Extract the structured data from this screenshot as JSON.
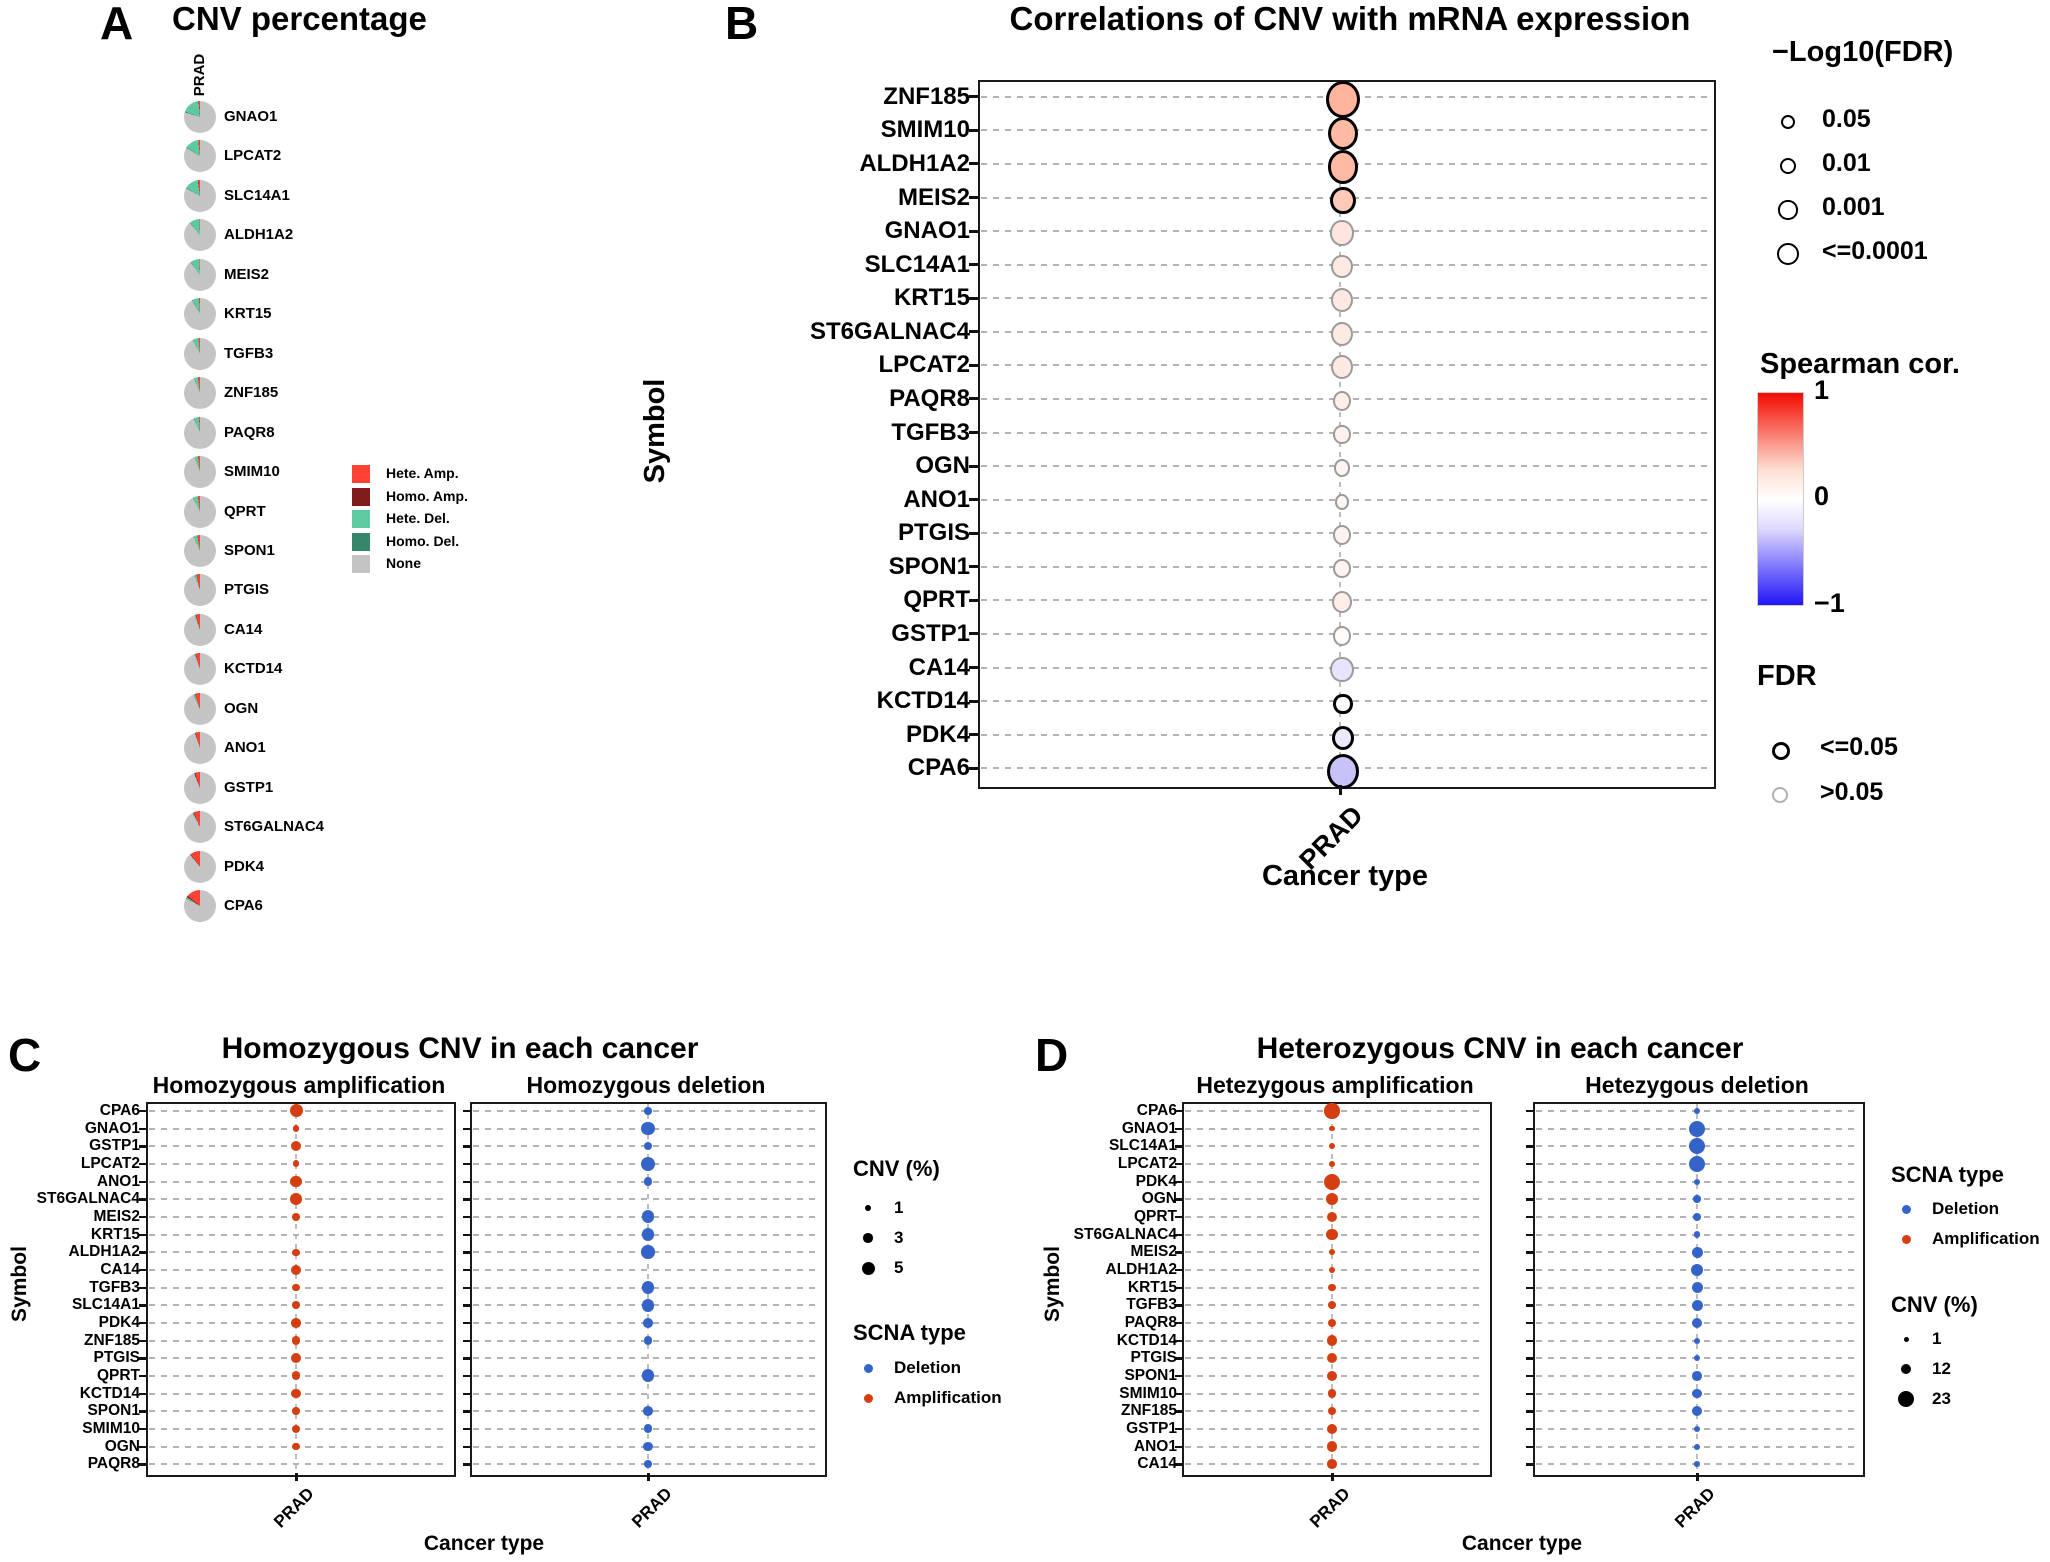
{
  "colors": {
    "hete_amp": "#ff4136",
    "homo_amp": "#801c1c",
    "hete_del": "#5ecaa2",
    "homo_del": "#35866a",
    "none": "#c4c4c4",
    "amplification": "#d43e10",
    "deletion": "#3564c9",
    "sig_outline": "#000000",
    "nonsig_outline": "#9a9a9a",
    "cor_positive_end": "#f40b00",
    "cor_negative_end": "#2015f8"
  },
  "chart_data": {
    "panelA": {
      "label": "A",
      "title": "CNV percentage",
      "type": "pie",
      "column_header": "PRAD",
      "legend": [
        {
          "label": "Hete. Amp.",
          "color": "#ff4136"
        },
        {
          "label": "Homo. Amp.",
          "color": "#801c1c"
        },
        {
          "label": "Hete. Del.",
          "color": "#5ecaa2"
        },
        {
          "label": "Homo. Del.",
          "color": "#35866a"
        },
        {
          "label": "None",
          "color": "#c4c4c4"
        }
      ],
      "pies": [
        {
          "symbol": "GNAO1",
          "hete_amp": 1.2,
          "homo_amp": 0.3,
          "hete_del": 18,
          "homo_del": 0.8
        },
        {
          "symbol": "LPCAT2",
          "hete_amp": 1.5,
          "homo_amp": 0.3,
          "hete_del": 14,
          "homo_del": 0.6
        },
        {
          "symbol": "SLC14A1",
          "hete_amp": 2.0,
          "homo_amp": 0.3,
          "hete_del": 14,
          "homo_del": 0.6
        },
        {
          "symbol": "ALDH1A2",
          "hete_amp": 0.6,
          "homo_amp": 0.1,
          "hete_del": 10,
          "homo_del": 0.5
        },
        {
          "symbol": "MEIS2",
          "hete_amp": 0.6,
          "homo_amp": 0.1,
          "hete_del": 9,
          "homo_del": 0.4
        },
        {
          "symbol": "KRT15",
          "hete_amp": 1.0,
          "homo_amp": 0.1,
          "hete_del": 7,
          "homo_del": 0.4
        },
        {
          "symbol": "TGFB3",
          "hete_amp": 1.5,
          "homo_amp": 0.1,
          "hete_del": 5.5,
          "homo_del": 0.3
        },
        {
          "symbol": "ZNF185",
          "hete_amp": 2.0,
          "homo_amp": 0.1,
          "hete_del": 4,
          "homo_del": 0.2
        },
        {
          "symbol": "PAQR8",
          "hete_amp": 1.0,
          "homo_amp": 0.1,
          "hete_del": 5,
          "homo_del": 0.3
        },
        {
          "symbol": "SMIM10",
          "hete_amp": 2.0,
          "homo_amp": 0.1,
          "hete_del": 3.5,
          "homo_del": 0.2
        },
        {
          "symbol": "QPRT",
          "hete_amp": 2.0,
          "homo_amp": 0.2,
          "hete_del": 5,
          "homo_del": 0.3
        },
        {
          "symbol": "SPON1",
          "hete_amp": 2.5,
          "homo_amp": 0.2,
          "hete_del": 4,
          "homo_del": 0.2
        },
        {
          "symbol": "PTGIS",
          "hete_amp": 3.5,
          "homo_amp": 0.3,
          "hete_del": 2,
          "homo_del": 0.1
        },
        {
          "symbol": "CA14",
          "hete_amp": 4.0,
          "homo_amp": 0.5,
          "hete_del": 1,
          "homo_del": 0.1
        },
        {
          "symbol": "KCTD14",
          "hete_amp": 4.5,
          "homo_amp": 0.3,
          "hete_del": 1,
          "homo_del": 0.1
        },
        {
          "symbol": "OGN",
          "hete_amp": 5.0,
          "homo_amp": 0.3,
          "hete_del": 1.5,
          "homo_del": 0.2
        },
        {
          "symbol": "ANO1",
          "hete_amp": 4.5,
          "homo_amp": 0.5,
          "hete_del": 0.5,
          "homo_del": 0.1
        },
        {
          "symbol": "GSTP1",
          "hete_amp": 5.0,
          "homo_amp": 0.8,
          "hete_del": 0.5,
          "homo_del": 0.1
        },
        {
          "symbol": "ST6GALNAC4",
          "hete_amp": 6.5,
          "homo_amp": 0.5,
          "hete_del": 1,
          "homo_del": 0.1
        },
        {
          "symbol": "PDK4",
          "hete_amp": 10,
          "homo_amp": 0.5,
          "hete_del": 0.5,
          "homo_del": 0.1
        },
        {
          "symbol": "CPA6",
          "hete_amp": 14,
          "homo_amp": 1.5,
          "hete_del": 1.5,
          "homo_del": 0.3
        }
      ]
    },
    "panelB": {
      "label": "B",
      "title": "Correlations of CNV with mRNA expression",
      "type": "scatter",
      "x_label": "Cancer type",
      "y_label": "Symbol",
      "x_tick": "PRAD",
      "size_legend": {
        "title": "−Log10(FDR)",
        "items": [
          {
            "label": "0.05",
            "neg_log10_fdr": 1.3
          },
          {
            "label": "0.01",
            "neg_log10_fdr": 2
          },
          {
            "label": "0.001",
            "neg_log10_fdr": 3
          },
          {
            "label": "<=0.0001",
            "neg_log10_fdr": 4
          }
        ]
      },
      "color_legend": {
        "title": "Spearman cor.",
        "ticks": [
          "1",
          "0",
          "−1"
        ],
        "range": [
          1,
          -1
        ]
      },
      "fdr_legend": {
        "title": "FDR",
        "items": [
          {
            "label": "<=0.05",
            "significant": true
          },
          {
            "label": ">0.05",
            "significant": false
          }
        ]
      },
      "points": [
        {
          "symbol": "ZNF185",
          "spearman_cor": 0.35,
          "neg_log10_fdr": 7.0,
          "fdr": "<=0.05"
        },
        {
          "symbol": "SMIM10",
          "spearman_cor": 0.32,
          "neg_log10_fdr": 6.0,
          "fdr": "<=0.05"
        },
        {
          "symbol": "ALDH1A2",
          "spearman_cor": 0.32,
          "neg_log10_fdr": 6.0,
          "fdr": "<=0.05"
        },
        {
          "symbol": "MEIS2",
          "spearman_cor": 0.25,
          "neg_log10_fdr": 4.2,
          "fdr": "<=0.05"
        },
        {
          "symbol": "GNAO1",
          "spearman_cor": 0.12,
          "neg_log10_fdr": 4.2,
          "fdr": ">0.05"
        },
        {
          "symbol": "SLC14A1",
          "spearman_cor": 0.1,
          "neg_log10_fdr": 3.6,
          "fdr": ">0.05"
        },
        {
          "symbol": "KRT15",
          "spearman_cor": 0.1,
          "neg_log10_fdr": 3.9,
          "fdr": ">0.05"
        },
        {
          "symbol": "ST6GALNAC4",
          "spearman_cor": 0.1,
          "neg_log10_fdr": 3.9,
          "fdr": ">0.05"
        },
        {
          "symbol": "LPCAT2",
          "spearman_cor": 0.1,
          "neg_log10_fdr": 3.9,
          "fdr": ">0.05"
        },
        {
          "symbol": "PAQR8",
          "spearman_cor": 0.08,
          "neg_log10_fdr": 2.9,
          "fdr": ">0.05"
        },
        {
          "symbol": "TGFB3",
          "spearman_cor": 0.06,
          "neg_log10_fdr": 2.3,
          "fdr": ">0.05"
        },
        {
          "symbol": "OGN",
          "spearman_cor": 0.05,
          "neg_log10_fdr": 2.0,
          "fdr": ">0.05"
        },
        {
          "symbol": "ANO1",
          "spearman_cor": 0.04,
          "neg_log10_fdr": 1.6,
          "fdr": ">0.05"
        },
        {
          "symbol": "PTGIS",
          "spearman_cor": 0.06,
          "neg_log10_fdr": 2.6,
          "fdr": ">0.05"
        },
        {
          "symbol": "SPON1",
          "spearman_cor": 0.05,
          "neg_log10_fdr": 2.3,
          "fdr": ">0.05"
        },
        {
          "symbol": "QPRT",
          "spearman_cor": 0.08,
          "neg_log10_fdr": 3.2,
          "fdr": ">0.05"
        },
        {
          "symbol": "GSTP1",
          "spearman_cor": 0.02,
          "neg_log10_fdr": 2.9,
          "fdr": ">0.05"
        },
        {
          "symbol": "CA14",
          "spearman_cor": -0.12,
          "neg_log10_fdr": 4.2,
          "fdr": ">0.05"
        },
        {
          "symbol": "KCTD14",
          "spearman_cor": -0.02,
          "neg_log10_fdr": 2.3,
          "fdr": "<=0.05"
        },
        {
          "symbol": "PDK4",
          "spearman_cor": -0.1,
          "neg_log10_fdr": 3.2,
          "fdr": "<=0.05"
        },
        {
          "symbol": "CPA6",
          "spearman_cor": -0.28,
          "neg_log10_fdr": 6.5,
          "fdr": "<=0.05"
        }
      ]
    },
    "panelC": {
      "label": "C",
      "title": "Homozygous CNV in each cancer",
      "type": "scatter",
      "x_label": "Cancer type",
      "y_label": "Symbol",
      "x_tick": "PRAD",
      "subpanels": [
        {
          "title": "Homozygous amplification",
          "scna": "amplification"
        },
        {
          "title": "Homozygous deletion",
          "scna": "deletion"
        }
      ],
      "cnv_legend": {
        "title": "CNV (%)",
        "items": [
          {
            "label": "1",
            "value": 1
          },
          {
            "label": "3",
            "value": 3
          },
          {
            "label": "5",
            "value": 5
          }
        ]
      },
      "scna_legend": {
        "title": "SCNA type",
        "items": [
          {
            "label": "Deletion",
            "color": "#3564c9"
          },
          {
            "label": "Amplification",
            "color": "#d43e10"
          }
        ]
      },
      "rows": [
        {
          "symbol": "CPA6",
          "amplification": 5.0,
          "deletion": 2.0
        },
        {
          "symbol": "GNAO1",
          "amplification": 1.5,
          "deletion": 5.5
        },
        {
          "symbol": "GSTP1",
          "amplification": 3.5,
          "deletion": 2.6
        },
        {
          "symbol": "LPCAT2",
          "amplification": 1.5,
          "deletion": 5.5
        },
        {
          "symbol": "ANO1",
          "amplification": 4.3,
          "deletion": 2.6
        },
        {
          "symbol": "ST6GALNAC4",
          "amplification": 4.3,
          "deletion": 0
        },
        {
          "symbol": "MEIS2",
          "amplification": 2.0,
          "deletion": 4.9
        },
        {
          "symbol": "KRT15",
          "amplification": 0,
          "deletion": 4.9
        },
        {
          "symbol": "ALDH1A2",
          "amplification": 1.8,
          "deletion": 5.2
        },
        {
          "symbol": "CA14",
          "amplification": 3.6,
          "deletion": 0
        },
        {
          "symbol": "TGFB3",
          "amplification": 2.0,
          "deletion": 4.9
        },
        {
          "symbol": "SLC14A1",
          "amplification": 2.0,
          "deletion": 4.9
        },
        {
          "symbol": "PDK4",
          "amplification": 3.2,
          "deletion": 3.2
        },
        {
          "symbol": "ZNF185",
          "amplification": 2.6,
          "deletion": 2.6
        },
        {
          "symbol": "PTGIS",
          "amplification": 3.6,
          "deletion": 0
        },
        {
          "symbol": "QPRT",
          "amplification": 2.6,
          "deletion": 4.9
        },
        {
          "symbol": "KCTD14",
          "amplification": 3.2,
          "deletion": 0
        },
        {
          "symbol": "SPON1",
          "amplification": 2.0,
          "deletion": 3.2
        },
        {
          "symbol": "SMIM10",
          "amplification": 2.3,
          "deletion": 2.6
        },
        {
          "symbol": "OGN",
          "amplification": 2.0,
          "deletion": 3.2
        },
        {
          "symbol": "PAQR8",
          "amplification": 0,
          "deletion": 2.0
        }
      ]
    },
    "panelD": {
      "label": "D",
      "title": "Heterozygous CNV in each cancer",
      "type": "scatter",
      "x_label": "Cancer type",
      "y_label": "Symbol",
      "x_tick": "PRAD",
      "subpanels": [
        {
          "title": "Hetezygous amplification",
          "scna": "amplification"
        },
        {
          "title": "Hetezygous deletion",
          "scna": "deletion"
        }
      ],
      "cnv_legend": {
        "title": "CNV (%)",
        "items": [
          {
            "label": "1",
            "value": 1
          },
          {
            "label": "12",
            "value": 12
          },
          {
            "label": "23",
            "value": 23
          }
        ]
      },
      "scna_legend": {
        "title": "SCNA type",
        "items": [
          {
            "label": "Deletion",
            "color": "#3564c9"
          },
          {
            "label": "Amplification",
            "color": "#d43e10"
          }
        ]
      },
      "rows": [
        {
          "symbol": "CPA6",
          "amplification": 22,
          "deletion": 4
        },
        {
          "symbol": "GNAO1",
          "amplification": 2,
          "deletion": 23
        },
        {
          "symbol": "SLC14A1",
          "amplification": 4,
          "deletion": 23
        },
        {
          "symbol": "LPCAT2",
          "amplification": 4,
          "deletion": 23
        },
        {
          "symbol": "PDK4",
          "amplification": 23,
          "deletion": 3
        },
        {
          "symbol": "OGN",
          "amplification": 16,
          "deletion": 6
        },
        {
          "symbol": "QPRT",
          "amplification": 12,
          "deletion": 8
        },
        {
          "symbol": "ST6GALNAC4",
          "amplification": 14,
          "deletion": 4
        },
        {
          "symbol": "MEIS2",
          "amplification": 3,
          "deletion": 13
        },
        {
          "symbol": "ALDH1A2",
          "amplification": 4,
          "deletion": 15
        },
        {
          "symbol": "KRT15",
          "amplification": 6,
          "deletion": 13
        },
        {
          "symbol": "TGFB3",
          "amplification": 7,
          "deletion": 13
        },
        {
          "symbol": "PAQR8",
          "amplification": 7,
          "deletion": 12
        },
        {
          "symbol": "KCTD14",
          "amplification": 12,
          "deletion": 3
        },
        {
          "symbol": "PTGIS",
          "amplification": 12,
          "deletion": 4
        },
        {
          "symbol": "SPON1",
          "amplification": 12,
          "deletion": 10
        },
        {
          "symbol": "SMIM10",
          "amplification": 8,
          "deletion": 10
        },
        {
          "symbol": "ZNF185",
          "amplification": 8,
          "deletion": 12
        },
        {
          "symbol": "GSTP1",
          "amplification": 12,
          "deletion": 4
        },
        {
          "symbol": "ANO1",
          "amplification": 12,
          "deletion": 3
        },
        {
          "symbol": "CA14",
          "amplification": 10,
          "deletion": 2
        }
      ]
    }
  }
}
